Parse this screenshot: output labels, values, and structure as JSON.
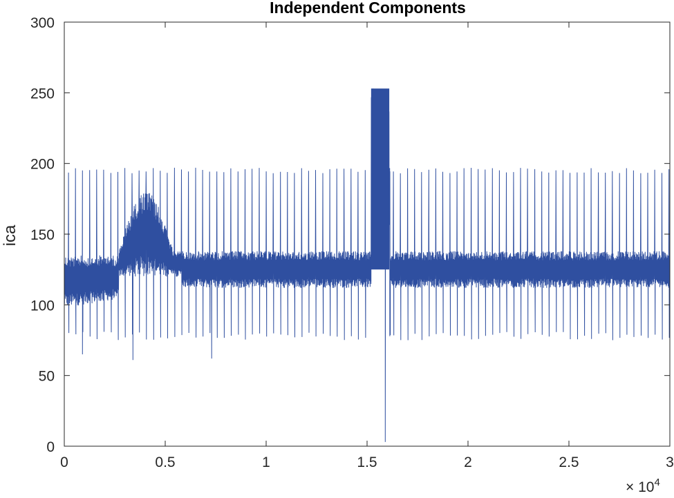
{
  "chart_data": {
    "type": "line",
    "title": "Independent Components",
    "xlabel": "",
    "ylabel": "ica",
    "xlim": [
      0,
      30000
    ],
    "ylim": [
      0,
      300
    ],
    "x_tick_labels": [
      "0",
      "0.5",
      "1",
      "1.5",
      "2",
      "2.5",
      "3"
    ],
    "x_tick_values": [
      0,
      5000,
      10000,
      15000,
      20000,
      25000,
      30000
    ],
    "x_exponent_label": "× 10",
    "x_exponent_power": "4",
    "y_tick_labels": [
      "0",
      "50",
      "100",
      "150",
      "200",
      "250",
      "300"
    ],
    "y_tick_values": [
      0,
      50,
      100,
      150,
      200,
      250,
      300
    ],
    "grid": false,
    "box": true,
    "series": [
      {
        "color": "#2f4fa0",
        "segments": [
          {
            "x_start": 0,
            "x_end": 2700,
            "low": 98,
            "high": 135
          },
          {
            "x_start": 2700,
            "x_end": 5800,
            "low": 120,
            "high": 180
          },
          {
            "x_start": 5800,
            "x_end": 15200,
            "low": 112,
            "high": 138
          },
          {
            "x_start": 15200,
            "x_end": 16100,
            "low": 125,
            "high": 253
          },
          {
            "x_start": 16100,
            "x_end": 30000,
            "low": 112,
            "high": 138
          }
        ],
        "spike_period": 350,
        "spike_high": 197,
        "spike_low": 75,
        "notable_points": [
          {
            "x": 900,
            "y": 65
          },
          {
            "x": 3400,
            "y": 61
          },
          {
            "x": 7300,
            "y": 62
          },
          {
            "x": 15900,
            "y": 3
          }
        ]
      }
    ]
  }
}
